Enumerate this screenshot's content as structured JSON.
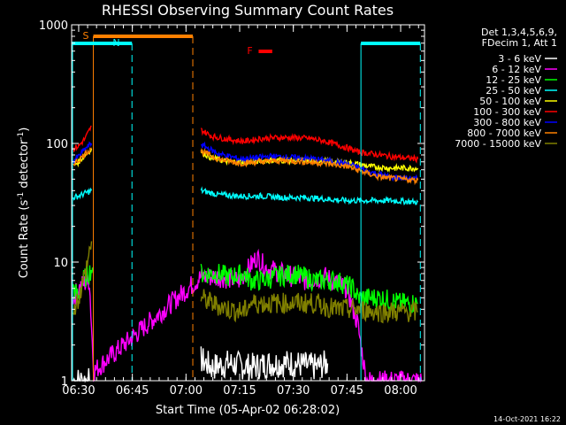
{
  "chart_data": {
    "type": "line",
    "title": "RHESSI Observing Summary Count Rates",
    "xlabel": "Start Time (05-Apr-02 06:28:02)",
    "ylabel_main": "Count Rate (s",
    "ylabel_sup1": "-1",
    "ylabel_mid": " detector",
    "ylabel_sup2": "-1",
    "ylabel_end": ")",
    "yscale": "log",
    "ylim": [
      1,
      1000
    ],
    "xlim": [
      6.4672,
      8.1111
    ],
    "x_ticks": [
      {
        "v": 6.5,
        "label": "06:30"
      },
      {
        "v": 6.75,
        "label": "06:45"
      },
      {
        "v": 7.0,
        "label": "07:00"
      },
      {
        "v": 7.25,
        "label": "07:15"
      },
      {
        "v": 7.5,
        "label": "07:30"
      },
      {
        "v": 7.75,
        "label": "07:45"
      },
      {
        "v": 8.0,
        "label": "08:00"
      }
    ],
    "y_ticks": [
      {
        "v": 1,
        "label": "1"
      },
      {
        "v": 10,
        "label": "10"
      },
      {
        "v": 100,
        "label": "100"
      },
      {
        "v": 1000,
        "label": "1000"
      }
    ],
    "legend_header": [
      "Det 1,3,4,5,6,9,",
      "FDecim 1, Att 1"
    ],
    "legend_placement": "right",
    "series": [
      {
        "name": "3 - 6 keV",
        "color": "#ffffff",
        "points": [
          [
            6.475,
            1
          ],
          [
            6.55,
            1
          ],
          [
            7.07,
            1.5
          ],
          [
            7.12,
            1.3
          ],
          [
            7.2,
            1.4
          ],
          [
            7.3,
            1.3
          ],
          [
            7.4,
            1.4
          ],
          [
            7.5,
            1.4
          ],
          [
            7.6,
            1.3
          ],
          [
            7.66,
            1.4
          ]
        ]
      },
      {
        "name": "6 - 12 keV",
        "color": "#ff00ff",
        "points": [
          [
            6.475,
            5
          ],
          [
            6.5,
            6
          ],
          [
            6.52,
            6.5
          ],
          [
            6.55,
            7
          ],
          [
            6.57,
            1.2
          ],
          [
            7.07,
            7.5
          ],
          [
            7.15,
            7.5
          ],
          [
            7.25,
            7
          ],
          [
            7.33,
            11
          ],
          [
            7.37,
            9
          ],
          [
            7.45,
            8
          ],
          [
            7.55,
            7
          ],
          [
            7.65,
            7.5
          ],
          [
            7.75,
            6
          ],
          [
            7.8,
            3
          ],
          [
            7.84,
            1
          ],
          [
            8.1,
            1
          ]
        ]
      },
      {
        "name": "12 - 25 keV",
        "color": "#00ff00",
        "points": [
          [
            6.475,
            6
          ],
          [
            6.5,
            5
          ],
          [
            6.52,
            7
          ],
          [
            6.545,
            8
          ],
          [
            6.565,
            9
          ],
          [
            7.07,
            8
          ],
          [
            7.15,
            8
          ],
          [
            7.2,
            7.5
          ],
          [
            7.27,
            8
          ],
          [
            7.3,
            7
          ],
          [
            7.35,
            7
          ],
          [
            7.42,
            7.5
          ],
          [
            7.5,
            8
          ],
          [
            7.6,
            7
          ],
          [
            7.7,
            7
          ],
          [
            7.78,
            6
          ],
          [
            7.8,
            5
          ],
          [
            7.9,
            5
          ],
          [
            8.0,
            4.5
          ],
          [
            8.08,
            4.5
          ]
        ]
      },
      {
        "name": "25 - 50 keV",
        "color": "#00ffff",
        "points": [
          [
            6.475,
            35
          ],
          [
            6.5,
            36
          ],
          [
            6.53,
            38
          ],
          [
            6.56,
            40
          ],
          [
            7.07,
            40
          ],
          [
            7.15,
            37
          ],
          [
            7.25,
            36
          ],
          [
            7.35,
            36
          ],
          [
            7.45,
            35
          ],
          [
            7.55,
            35
          ],
          [
            7.65,
            34
          ],
          [
            7.75,
            33
          ],
          [
            7.85,
            33
          ],
          [
            7.95,
            33
          ],
          [
            8.08,
            32
          ]
        ]
      },
      {
        "name": "50 - 100 keV",
        "color": "#ffff00",
        "points": [
          [
            6.475,
            65
          ],
          [
            6.5,
            70
          ],
          [
            6.53,
            80
          ],
          [
            6.56,
            90
          ],
          [
            7.07,
            85
          ],
          [
            7.12,
            75
          ],
          [
            7.2,
            70
          ],
          [
            7.3,
            70
          ],
          [
            7.4,
            72
          ],
          [
            7.5,
            72
          ],
          [
            7.6,
            72
          ],
          [
            7.7,
            70
          ],
          [
            7.78,
            68
          ],
          [
            7.85,
            64
          ],
          [
            7.95,
            62
          ],
          [
            8.08,
            62
          ]
        ]
      },
      {
        "name": "100 - 300 keV",
        "color": "#ff0000",
        "points": [
          [
            6.475,
            90
          ],
          [
            6.5,
            95
          ],
          [
            6.53,
            110
          ],
          [
            6.56,
            140
          ],
          [
            7.07,
            130
          ],
          [
            7.12,
            115
          ],
          [
            7.2,
            108
          ],
          [
            7.27,
            104
          ],
          [
            7.35,
            110
          ],
          [
            7.43,
            112
          ],
          [
            7.5,
            112
          ],
          [
            7.58,
            110
          ],
          [
            7.65,
            104
          ],
          [
            7.75,
            92
          ],
          [
            7.8,
            85
          ],
          [
            7.9,
            80
          ],
          [
            8.0,
            76
          ],
          [
            8.08,
            74
          ]
        ]
      },
      {
        "name": "300 - 800 keV",
        "color": "#0000ff",
        "points": [
          [
            6.475,
            72
          ],
          [
            6.5,
            78
          ],
          [
            6.53,
            90
          ],
          [
            6.56,
            100
          ],
          [
            7.07,
            98
          ],
          [
            7.15,
            82
          ],
          [
            7.25,
            74
          ],
          [
            7.3,
            75
          ],
          [
            7.4,
            78
          ],
          [
            7.5,
            76
          ],
          [
            7.6,
            74
          ],
          [
            7.7,
            70
          ],
          [
            7.78,
            65
          ],
          [
            7.85,
            58
          ],
          [
            7.95,
            52
          ],
          [
            8.08,
            50
          ]
        ]
      },
      {
        "name": "800 - 7000 keV",
        "color": "#ff8000",
        "points": [
          [
            6.475,
            68
          ],
          [
            6.5,
            72
          ],
          [
            6.53,
            82
          ],
          [
            6.56,
            92
          ],
          [
            7.07,
            86
          ],
          [
            7.15,
            74
          ],
          [
            7.25,
            68
          ],
          [
            7.35,
            70
          ],
          [
            7.45,
            72
          ],
          [
            7.55,
            70
          ],
          [
            7.65,
            68
          ],
          [
            7.75,
            64
          ],
          [
            7.82,
            58
          ],
          [
            7.9,
            52
          ],
          [
            8.0,
            50
          ],
          [
            8.08,
            49
          ]
        ]
      },
      {
        "name": "7000 - 15000 keV",
        "color": "#808000",
        "points": [
          [
            6.475,
            4
          ],
          [
            6.5,
            5
          ],
          [
            6.53,
            8
          ],
          [
            6.56,
            15
          ],
          [
            7.07,
            5
          ],
          [
            7.12,
            4.5
          ],
          [
            7.2,
            4
          ],
          [
            7.27,
            3.8
          ],
          [
            7.3,
            4.5
          ],
          [
            7.4,
            4.5
          ],
          [
            7.5,
            4.5
          ],
          [
            7.6,
            4.5
          ],
          [
            7.7,
            4
          ],
          [
            7.75,
            4
          ],
          [
            7.8,
            4
          ],
          [
            7.9,
            3.8
          ],
          [
            8.0,
            3.8
          ],
          [
            8.08,
            3.8
          ]
        ]
      }
    ],
    "flags": [
      {
        "label": "S",
        "color": "#ff8000",
        "x_start": 6.5683,
        "x_end": 7.0317
      },
      {
        "label": "N",
        "color": "#00ffff",
        "x_start": 6.4672,
        "x_end": 6.7483
      },
      {
        "label": "N",
        "color": "#00ffff",
        "x_start": 7.815,
        "x_end": 8.0917
      }
    ],
    "flare_label": "F",
    "flare_color": "#ff0000",
    "flare_x_start": 7.3383,
    "flare_x_end": 7.4017,
    "timestamp": "14-Oct-2021 16:22"
  }
}
